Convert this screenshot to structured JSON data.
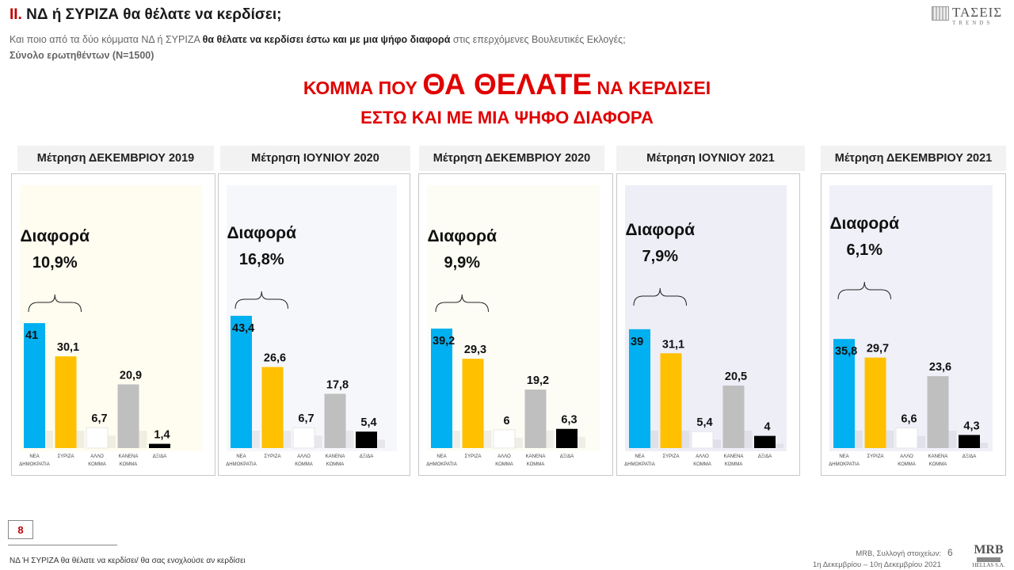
{
  "header": {
    "title_roman": "II.",
    "title_text": "ΝΔ  ή ΣΥΡΙΖΑ θα θέλατε να κερδίσει;",
    "subtitle_pre": "Και ποιο από τα δύο κόμματα ΝΔ ή ΣΥΡΙΖΑ ",
    "subtitle_bold": "θα θέλατε να κερδίσει έστω και με μια ψήφο διαφορά",
    "subtitle_post": " στις επερχόμενες Βουλευτικές Εκλογές;",
    "base": "Σύνολο ερωτηθέντων (N=1500)"
  },
  "logo": {
    "name": "ΤΑΣΕΙΣ",
    "sub": "TRENDS"
  },
  "headline": {
    "line1_pre": "ΚΟΜΜΑ ΠΟΥ ",
    "line1_big": "ΘΑ ΘΕΛΑΤΕ",
    "line1_post": " ΝΑ ΚΕΡΔΙΣΕΙ",
    "line2": "ΕΣΤΩ ΚΑΙ ΜΕ ΜΙΑ ΨΗΦΟ ΔΙΑΦΟΡΑ"
  },
  "colors": {
    "nd": "#00b0f0",
    "syriza": "#ffc000",
    "other": "#ffffff",
    "none": "#bfbfbf",
    "dkna": "#000000",
    "accent": "#e00000"
  },
  "chart_data": [
    {
      "type": "bar",
      "title": "Μέτρηση ΔΕΚΕΜΒΡΙΟΥ 2019",
      "categories": [
        "ΝΕΑ ΔΗΜΟΚΡΑΤΙΑ",
        "ΣΥΡΙΖΑ",
        "ΑΛΛΟ ΚΟΜΜΑ",
        "ΚΑΝΕΝΑ ΚΟΜΜΑ",
        "ΔΞ/ΔΑ"
      ],
      "values": [
        41,
        30.1,
        6.7,
        20.9,
        1.4
      ],
      "value_labels": [
        "41",
        "30,1",
        "6,7",
        "20,9",
        "1,4"
      ],
      "annotation": {
        "label": "Διαφορά",
        "value": "10,9%"
      }
    },
    {
      "type": "bar",
      "title": "Μέτρηση ΙΟΥΝΙΟΥ 2020",
      "categories": [
        "ΝΕΑ ΔΗΜΟΚΡΑΤΙΑ",
        "ΣΥΡΙΖΑ",
        "ΑΛΛΟ ΚΟΜΜΑ",
        "ΚΑΝΕΝΑ ΚΟΜΜΑ",
        "ΔΞ/ΔΑ"
      ],
      "values": [
        43.4,
        26.6,
        6.7,
        17.8,
        5.4
      ],
      "value_labels": [
        "43,4",
        "26,6",
        "6,7",
        "17,8",
        "5,4"
      ],
      "annotation": {
        "label": "Διαφορά",
        "value": "16,8%"
      }
    },
    {
      "type": "bar",
      "title": "Μέτρηση ΔΕΚΕΜΒΡΙΟΥ 2020",
      "categories": [
        "ΝΕΑ ΔΗΜΟΚΡΑΤΙΑ",
        "ΣΥΡΙΖΑ",
        "ΑΛΛΟ ΚΟΜΜΑ",
        "ΚΑΝΕΝΑ ΚΟΜΜΑ",
        "ΔΞ/ΔΑ"
      ],
      "values": [
        39.2,
        29.3,
        6,
        19.2,
        6.3
      ],
      "value_labels": [
        "39,2",
        "29,3",
        "6",
        "19,2",
        "6,3"
      ],
      "annotation": {
        "label": "Διαφορά",
        "value": "9,9%"
      }
    },
    {
      "type": "bar",
      "title": "Μέτρηση ΙΟΥΝΙΟΥ 2021",
      "categories": [
        "ΝΕΑ ΔΗΜΟΚΡΑΤΙΑ",
        "ΣΥΡΙΖΑ",
        "ΑΛΛΟ ΚΟΜΜΑ",
        "ΚΑΝΕΝΑ ΚΟΜΜΑ",
        "ΔΞ/ΔΑ"
      ],
      "values": [
        39,
        31.1,
        5.4,
        20.5,
        4
      ],
      "value_labels": [
        "39",
        "31,1",
        "5,4",
        "20,5",
        "4"
      ],
      "annotation": {
        "label": "Διαφορά",
        "value": "7,9%"
      }
    },
    {
      "type": "bar",
      "title": "Μέτρηση ΔΕΚΕΜΒΡΙΟΥ 2021",
      "categories": [
        "ΝΕΑ ΔΗΜΟΚΡΑΤΙΑ",
        "ΣΥΡΙΖΑ",
        "ΑΛΛΟ ΚΟΜΜΑ",
        "ΚΑΝΕΝΑ ΚΟΜΜΑ",
        "ΔΞ/ΔΑ"
      ],
      "values": [
        35.8,
        29.7,
        6.6,
        23.6,
        4.3
      ],
      "value_labels": [
        "35,8",
        "29,7",
        "6,6",
        "23,6",
        "4,3"
      ],
      "annotation": {
        "label": "Διαφορά",
        "value": "6,1%"
      }
    }
  ],
  "footer": {
    "page_box": "8",
    "footnote": "ΝΔ Ή ΣΥΡΙΖΑ θα θέλατε να κερδίσει/ θα σας ενοχλούσε αν κερδίσει",
    "source_line1": "MRB, Συλλογή στοιχείων:",
    "source_line2": "1η Δεκεμβρίου –  10η Δεκεμβρίου 2021",
    "slide_number": "6",
    "mrb_name": "MRB",
    "mrb_sub": "HELLAS S.A."
  }
}
